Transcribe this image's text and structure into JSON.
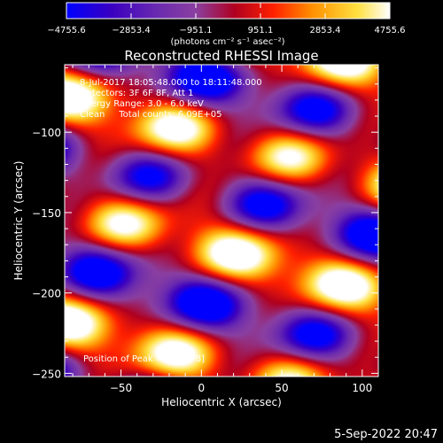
{
  "chart_data": {
    "type": "heatmap",
    "title": "Reconstructed RHESSI Image",
    "xlabel": "Heliocentric X (arcsec)",
    "ylabel": "Heliocentric Y (arcsec)",
    "xlim": [
      -85,
      110
    ],
    "ylim": [
      -252,
      -58
    ],
    "xticks": [
      -50,
      0,
      50,
      100
    ],
    "yticks": [
      -100,
      -150,
      -200,
      -250
    ],
    "colorbar": {
      "range": [
        -4755.6,
        4755.6
      ],
      "ticks": [
        -4755.6,
        -2853.4,
        -951.1,
        951.1,
        2853.4,
        4755.6
      ],
      "tick_labels": [
        "−4755.6",
        "−2853.4",
        "−951.1",
        "951.1",
        "2853.4",
        "4755.6"
      ],
      "unit_label": "(photons cm⁻² s⁻¹ asec⁻²)",
      "colormap": [
        "#0000ff",
        "#3a00c0",
        "#6a2ab0",
        "#8a3fa0",
        "#b00020",
        "#ff2000",
        "#ff9000",
        "#ffe040",
        "#ffffff"
      ]
    },
    "annotations": {
      "time_range": "8-Jul-2017 18:05:48.000 to 18:11:48.000",
      "detectors": "Detectors: 3F 6F 8F, Att 1",
      "energy_range": "Energy Range: 3.0 - 6.0 keV",
      "algorithm": "Clean     Total counts: 6.09E+05",
      "peak": "Position of Peak = [-84,-78]"
    },
    "pattern": {
      "description": "periodic fringe pattern of bright (yellow-white) and dark (blue) lobes along diagonal bands",
      "peak_position": [
        -84,
        -78
      ]
    }
  },
  "footer": {
    "date": "5-Sep-2022 20:47"
  }
}
